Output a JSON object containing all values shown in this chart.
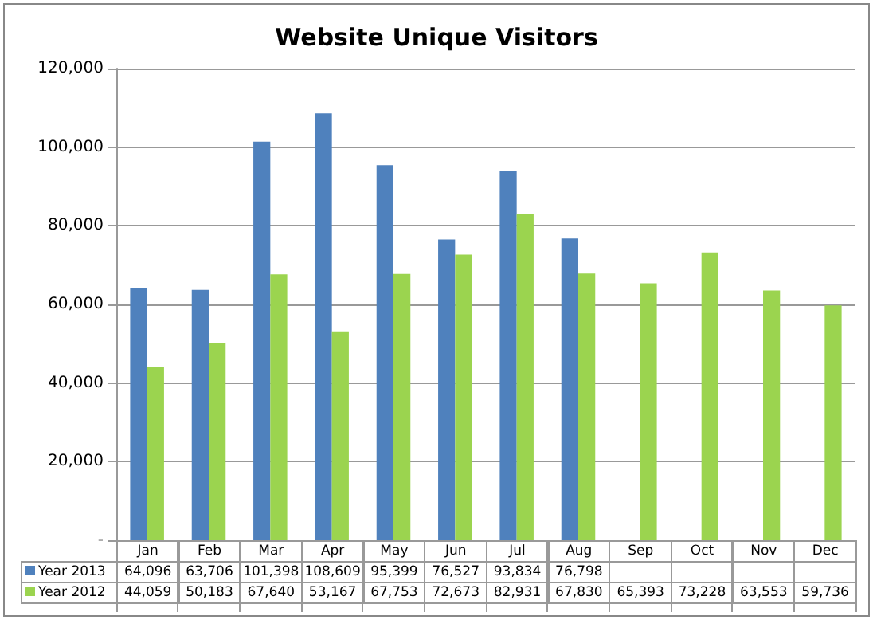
{
  "chart_data": {
    "type": "bar",
    "title": "Website Unique Visitors",
    "categories": [
      "Jan",
      "Feb",
      "Mar",
      "Apr",
      "May",
      "Jun",
      "Jul",
      "Aug",
      "Sep",
      "Oct",
      "Nov",
      "Dec"
    ],
    "series": [
      {
        "name": "Year 2013",
        "color": "#4f81bd",
        "values": [
          64096,
          63706,
          101398,
          108609,
          95399,
          76527,
          93834,
          76798,
          null,
          null,
          null,
          null
        ],
        "value_labels": [
          "64,096",
          "63,706",
          "101,398",
          "108,609",
          "95,399",
          "76,527",
          "93,834",
          "76,798",
          null,
          null,
          null,
          null
        ]
      },
      {
        "name": "Year 2012",
        "color": "#9bd44f",
        "values": [
          44059,
          50183,
          67640,
          53167,
          67753,
          72673,
          82931,
          67830,
          65393,
          73228,
          63553,
          59736
        ],
        "value_labels": [
          "44,059",
          "50,183",
          "67,640",
          "53,167",
          "67,753",
          "72,673",
          "82,931",
          "67,830",
          "65,393",
          "73,228",
          "63,553",
          "59,736"
        ]
      }
    ],
    "ylim": [
      0,
      120000
    ],
    "yticks": [
      {
        "value": 0,
        "label": "-"
      },
      {
        "value": 20000,
        "label": "20,000"
      },
      {
        "value": 40000,
        "label": "40,000"
      },
      {
        "value": 60000,
        "label": "60,000"
      },
      {
        "value": 80000,
        "label": "80,000"
      },
      {
        "value": 100000,
        "label": "100,000"
      },
      {
        "value": 120000,
        "label": "120,000"
      }
    ],
    "grid": "y",
    "legend": "bottom"
  }
}
